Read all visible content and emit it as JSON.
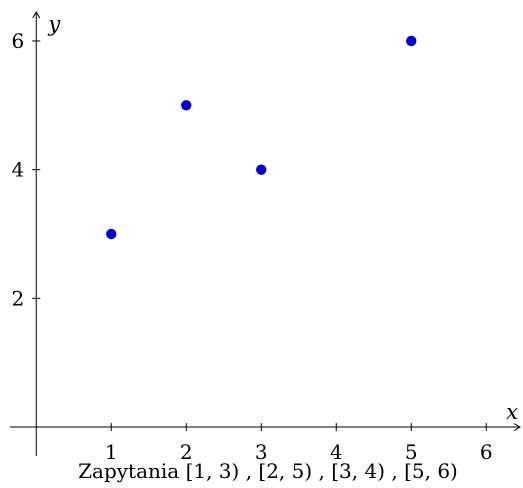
{
  "chart_data": {
    "type": "scatter",
    "xlabel": "x",
    "ylabel": "y",
    "xlim": [
      -0.35,
      6.45
    ],
    "ylim": [
      -0.45,
      6.45
    ],
    "xticks": [
      1,
      2,
      3,
      4,
      5,
      6
    ],
    "yticks": [
      2,
      4,
      6
    ],
    "grid": false,
    "caption": "Zapytania [1, 3) , [2, 5) , [3, 4) , [5, 6)",
    "series": [
      {
        "points": [
          {
            "x": 1,
            "y": 3
          },
          {
            "x": 2,
            "y": 5
          },
          {
            "x": 3,
            "y": 4
          },
          {
            "x": 5,
            "y": 6
          }
        ]
      }
    ],
    "colors": {
      "point": "#0000cc",
      "axis": "#000000"
    }
  }
}
